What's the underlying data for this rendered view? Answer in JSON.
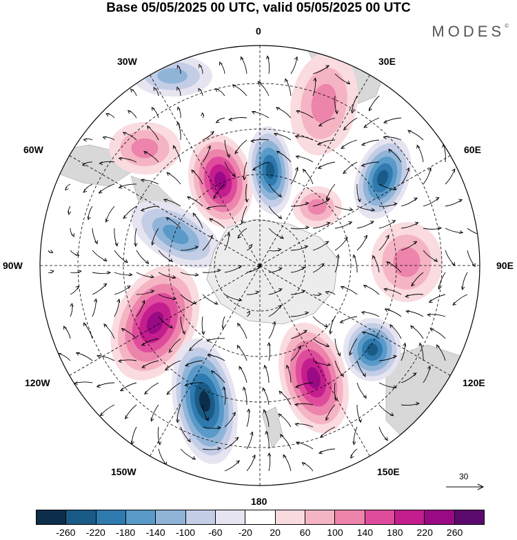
{
  "title": "Base 05/05/2025 00 UTC, valid 05/05/2025 00 UTC",
  "brand": "MODES",
  "brand_mark": "©",
  "map": {
    "projection": "south-polar-stereographic",
    "longitude_labels": [
      {
        "text": "0",
        "name": "lon-label-0"
      },
      {
        "text": "30E",
        "name": "lon-label-30e"
      },
      {
        "text": "60E",
        "name": "lon-label-60e"
      },
      {
        "text": "90E",
        "name": "lon-label-90e"
      },
      {
        "text": "120E",
        "name": "lon-label-120e"
      },
      {
        "text": "150E",
        "name": "lon-label-150e"
      },
      {
        "text": "180",
        "name": "lon-label-180"
      },
      {
        "text": "150W",
        "name": "lon-label-150w"
      },
      {
        "text": "120W",
        "name": "lon-label-120w"
      },
      {
        "text": "90W",
        "name": "lon-label-90w"
      },
      {
        "text": "60W",
        "name": "lon-label-60w"
      },
      {
        "text": "30W",
        "name": "lon-label-30w"
      }
    ],
    "reference_vector_label": "30"
  },
  "colorbar": {
    "ticks": [
      "-260",
      "-220",
      "-180",
      "-140",
      "-100",
      "-60",
      "-20",
      "20",
      "60",
      "100",
      "140",
      "180",
      "220",
      "260"
    ],
    "colors": [
      "#0d2e4a",
      "#1a5a86",
      "#2f7aaf",
      "#5a9ac8",
      "#90b4d8",
      "#c3cde6",
      "#e6e4f0",
      "#ffffff",
      "#f9dbe0",
      "#f5b4c4",
      "#ec84ac",
      "#df4c9c",
      "#c41e8e",
      "#9a0a84",
      "#5a0a6c"
    ]
  }
}
